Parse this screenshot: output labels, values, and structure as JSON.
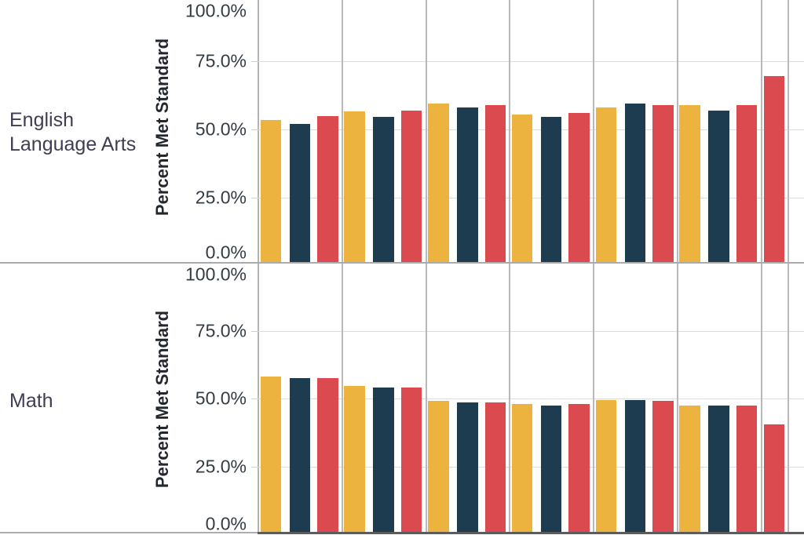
{
  "chart_data": {
    "type": "bar",
    "layout": "grouped-faceted",
    "ylabel": "Percent Met Standard",
    "yticks": [
      "100.0%",
      "75.0%",
      "50.0%",
      "25.0%",
      "0.0%"
    ],
    "ytick_values": [
      100,
      75,
      50,
      25,
      0
    ],
    "ylim": [
      0,
      100
    ],
    "grid": "on",
    "legend": "none",
    "series": [
      {
        "name": "gold",
        "color": "#ECB43F"
      },
      {
        "name": "navy",
        "color": "#1E3C50"
      },
      {
        "name": "red",
        "color": "#DB4A4F"
      }
    ],
    "rows": [
      {
        "label": "English Language Arts",
        "groups": [
          [
            53.5,
            52.0,
            55.0
          ],
          [
            56.5,
            54.5,
            57.0
          ],
          [
            59.5,
            58.0,
            59.0
          ],
          [
            55.5,
            54.5,
            56.0
          ],
          [
            58.0,
            59.5,
            59.0
          ],
          [
            59.0,
            57.0,
            59.0
          ],
          [
            null,
            null,
            69.5
          ]
        ]
      },
      {
        "label": "Math",
        "groups": [
          [
            58.0,
            57.5,
            57.5
          ],
          [
            54.5,
            54.0,
            54.0
          ],
          [
            49.0,
            48.5,
            48.5
          ],
          [
            48.0,
            47.5,
            48.0
          ],
          [
            49.5,
            49.5,
            49.0
          ],
          [
            47.5,
            47.5,
            47.5
          ],
          [
            null,
            null,
            40.5
          ]
        ]
      }
    ]
  },
  "colors": {
    "gridline": "#dcdcdc",
    "pane_separator": "#b9b9b9",
    "row_divider": "#ababab",
    "x_axis": "#5c5c5c"
  }
}
